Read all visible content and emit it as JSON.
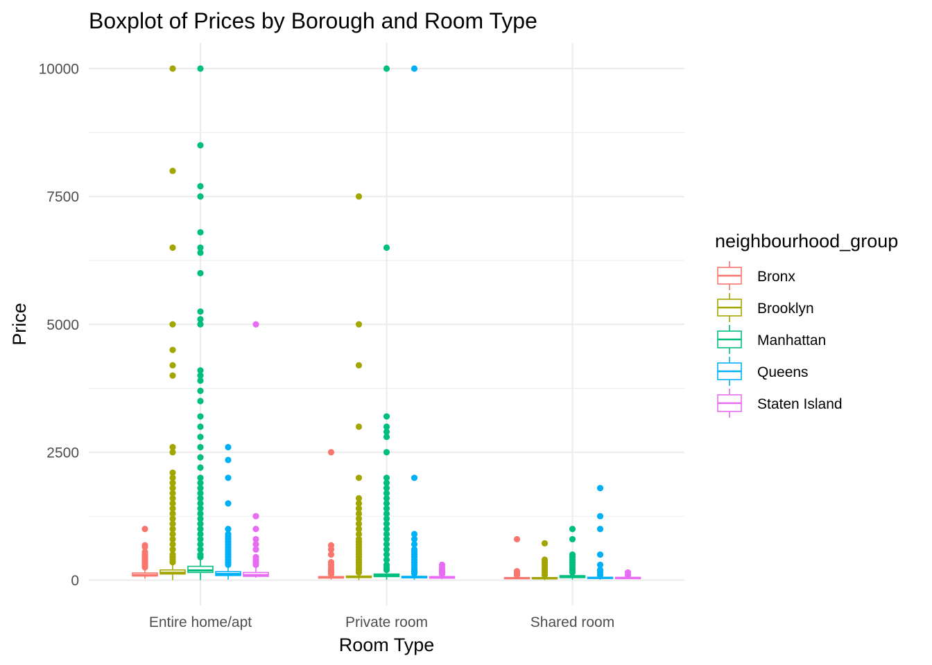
{
  "chart_data": {
    "type": "boxplot",
    "title": "Boxplot of Prices by Borough and Room Type",
    "xlabel": "Room Type",
    "ylabel": "Price",
    "ylim": [
      -500,
      10500
    ],
    "yticks": [
      0,
      2500,
      5000,
      7500,
      10000
    ],
    "grid": true,
    "legend": {
      "title": "neighbourhood_group",
      "position": "right"
    },
    "categories": [
      "Entire home/apt",
      "Private room",
      "Shared room"
    ],
    "series": [
      {
        "name": "Bronx",
        "color": "#F8766D",
        "boxes": [
          {
            "min": 28,
            "q1": 80,
            "median": 100,
            "q3": 140,
            "max": 230,
            "outliers": [
              250,
              260,
              280,
              300,
              320,
              350,
              380,
              400,
              420,
              450,
              480,
              500,
              550,
              650,
              680,
              1000
            ]
          },
          {
            "min": 10,
            "q1": 40,
            "median": 54,
            "q3": 70,
            "max": 115,
            "outliers": [
              120,
              130,
              150,
              175,
              200,
              250,
              300,
              350,
              500,
              600,
              680,
              2500
            ]
          },
          {
            "min": 20,
            "q1": 28,
            "median": 40,
            "q3": 50,
            "max": 80,
            "outliers": [
              100,
              130,
              150,
              175,
              800
            ]
          }
        ]
      },
      {
        "name": "Brooklyn",
        "color": "#A3A500",
        "boxes": [
          {
            "min": 0,
            "q1": 120,
            "median": 145,
            "q3": 199,
            "max": 320,
            "outliers": [
              350,
              400,
              450,
              500,
              600,
              700,
              800,
              900,
              1000,
              1100,
              1200,
              1300,
              1400,
              1500,
              1600,
              1700,
              1800,
              1900,
              2000,
              2100,
              2500,
              2600,
              4000,
              4200,
              4500,
              5000,
              6500,
              8000,
              10000
            ]
          },
          {
            "min": 0,
            "q1": 50,
            "median": 65,
            "q3": 80,
            "max": 125,
            "outliers": [
              150,
              200,
              250,
              300,
              350,
              400,
              450,
              500,
              550,
              600,
              650,
              700,
              750,
              800,
              900,
              1000,
              1100,
              1200,
              1300,
              1400,
              1500,
              1600,
              2000,
              3000,
              4200,
              5000,
              7500
            ]
          },
          {
            "min": 0,
            "q1": 30,
            "median": 36,
            "q3": 50,
            "max": 80,
            "outliers": [
              100,
              150,
              200,
              250,
              300,
              350,
              400,
              720
            ]
          }
        ]
      },
      {
        "name": "Manhattan",
        "color": "#00BF7D",
        "boxes": [
          {
            "min": 0,
            "q1": 150,
            "median": 190,
            "q3": 270,
            "max": 440,
            "outliers": [
              450,
              500,
              600,
              700,
              800,
              900,
              1000,
              1100,
              1200,
              1300,
              1400,
              1500,
              1600,
              1700,
              1800,
              1900,
              2000,
              2200,
              2400,
              2600,
              2800,
              3000,
              3200,
              3500,
              3700,
              3900,
              4000,
              4100,
              5000,
              5100,
              5250,
              6000,
              6400,
              6500,
              6800,
              7500,
              7700,
              8500,
              10000
            ]
          },
          {
            "min": 10,
            "q1": 69,
            "median": 90,
            "q3": 120,
            "max": 195,
            "outliers": [
              200,
              250,
              300,
              400,
              500,
              600,
              700,
              800,
              900,
              1000,
              1100,
              1200,
              1300,
              1400,
              1500,
              1600,
              1700,
              1800,
              1900,
              2000,
              2500,
              2800,
              2900,
              3000,
              3200,
              6500,
              10000
            ]
          },
          {
            "min": 10,
            "q1": 49,
            "median": 69,
            "q3": 88,
            "max": 140,
            "outliers": [
              150,
              200,
              250,
              300,
              350,
              400,
              450,
              500,
              800,
              1000
            ]
          }
        ]
      },
      {
        "name": "Queens",
        "color": "#00B0F6",
        "boxes": [
          {
            "min": 10,
            "q1": 90,
            "median": 120,
            "q3": 165,
            "max": 275,
            "outliers": [
              300,
              350,
              400,
              450,
              500,
              550,
              600,
              650,
              700,
              750,
              800,
              850,
              900,
              1000,
              1500,
              2000,
              2350,
              2600
            ]
          },
          {
            "min": 10,
            "q1": 45,
            "median": 60,
            "q3": 75,
            "max": 120,
            "outliers": [
              125,
              150,
              175,
              200,
              250,
              300,
              350,
              400,
              450,
              500,
              550,
              600,
              700,
              800,
              900,
              2000,
              10000
            ]
          },
          {
            "min": 10,
            "q1": 33,
            "median": 45,
            "q3": 55,
            "max": 85,
            "outliers": [
              100,
              150,
              200,
              300,
              500,
              1000,
              1250,
              1800
            ]
          }
        ]
      },
      {
        "name": "Staten Island",
        "color": "#E76BF3",
        "boxes": [
          {
            "min": 48,
            "q1": 75,
            "median": 100,
            "q3": 150,
            "max": 260,
            "outliers": [
              300,
              350,
              400,
              450,
              600,
              700,
              800,
              1000,
              1250,
              5000
            ]
          },
          {
            "min": 20,
            "q1": 40,
            "median": 50,
            "q3": 70,
            "max": 100,
            "outliers": [
              120,
              150,
              175,
              200,
              250,
              300
            ]
          },
          {
            "min": 20,
            "q1": 30,
            "median": 40,
            "q3": 55,
            "max": 80,
            "outliers": [
              100,
              150
            ]
          }
        ]
      }
    ]
  }
}
